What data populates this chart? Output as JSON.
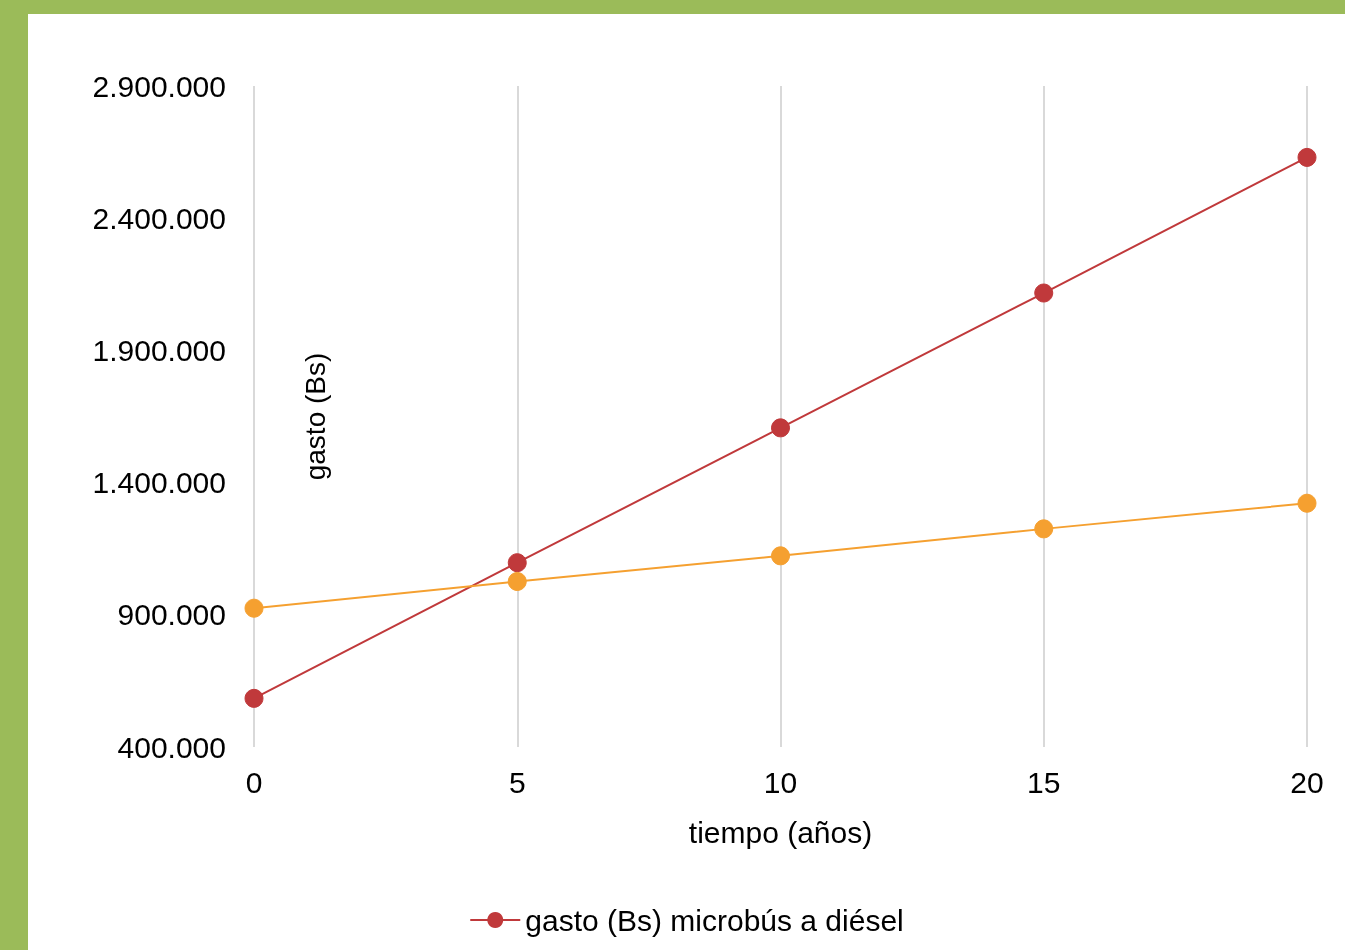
{
  "chart_data": {
    "type": "line",
    "xlabel": "tiempo (años)",
    "ylabel": "gasto (Bs)",
    "x": [
      0,
      5,
      10,
      15,
      20
    ],
    "series": [
      {
        "name": "gasto (Bs) microbús a diésel",
        "color": "#c0393b",
        "values": [
          584000,
          1097000,
          1607000,
          2117000,
          2630000
        ]
      },
      {
        "color": "#f5a030",
        "values": [
          925000,
          1026000,
          1123000,
          1225000,
          1322000
        ]
      }
    ],
    "xlim": [
      0,
      20
    ],
    "xticks": [
      0,
      5,
      10,
      15,
      20
    ],
    "ylim": [
      400000,
      2900000
    ],
    "yticks": [
      {
        "value": 400000,
        "label": "400.000"
      },
      {
        "value": 900000,
        "label": "900.000"
      },
      {
        "value": 1400000,
        "label": "1.400.000"
      },
      {
        "value": 1900000,
        "label": "1.900.000"
      },
      {
        "value": 2400000,
        "label": "2.400.000"
      },
      {
        "value": 2900000,
        "label": "2.900.000"
      }
    ],
    "grid": "x",
    "legend": "bottom",
    "marker": "circle",
    "line_style": "solid"
  }
}
